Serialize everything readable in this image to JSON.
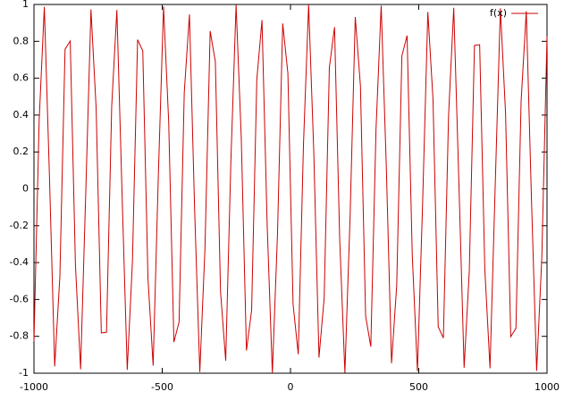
{
  "chart_data": {
    "type": "line",
    "x": [
      -1000,
      -979.8,
      -959.6,
      -939.4,
      -919.2,
      -899.0,
      -878.8,
      -858.6,
      -838.4,
      -818.2,
      -798.0,
      -777.8,
      -757.6,
      -737.4,
      -717.2,
      -697.0,
      -676.8,
      -656.6,
      -636.4,
      -616.2,
      -596.0,
      -575.8,
      -555.6,
      -535.4,
      -515.2,
      -494.9,
      -474.7,
      -454.5,
      -434.3,
      -414.1,
      -393.9,
      -373.7,
      -353.5,
      -333.3,
      -313.1,
      -292.9,
      -272.7,
      -252.5,
      -232.3,
      -212.1,
      -191.9,
      -171.7,
      -151.5,
      -131.3,
      -111.1,
      -90.9,
      -70.7,
      -50.5,
      -30.3,
      -10.1,
      10.1,
      30.3,
      50.5,
      70.7,
      90.9,
      111.1,
      131.3,
      151.5,
      171.7,
      191.9,
      212.1,
      232.3,
      252.5,
      272.7,
      292.9,
      313.1,
      333.3,
      353.5,
      373.7,
      393.9,
      414.1,
      434.3,
      454.5,
      474.7,
      494.9,
      515.2,
      535.4,
      555.6,
      575.8,
      596.0,
      616.2,
      636.4,
      656.6,
      676.8,
      697.0,
      717.2,
      737.4,
      757.6,
      777.8,
      798.0,
      818.2,
      838.4,
      858.6,
      878.8,
      899.0,
      919.2,
      939.4,
      959.6,
      979.8,
      1000
    ],
    "series": [
      {
        "name": "f(x)",
        "color": "#cc0000",
        "values": [
          -0.827,
          0.37,
          0.987,
          0.058,
          -0.963,
          -0.475,
          0.757,
          0.802,
          -0.409,
          -0.979,
          -0.015,
          0.973,
          0.437,
          -0.782,
          -0.778,
          0.447,
          0.97,
          -0.027,
          -0.982,
          -0.398,
          0.809,
          0.748,
          -0.485,
          -0.959,
          0.07,
          0.989,
          0.359,
          -0.831,
          -0.722,
          0.522,
          0.946,
          -0.112,
          -0.994,
          -0.319,
          0.856,
          0.69,
          -0.558,
          -0.932,
          0.154,
          0.998,
          0.278,
          -0.877,
          -0.658,
          0.592,
          0.915,
          -0.196,
          -1.0,
          -0.237,
          0.897,
          0.626,
          -0.626,
          -0.897,
          0.237,
          1.0,
          0.196,
          -0.915,
          -0.592,
          0.658,
          0.877,
          -0.278,
          -0.998,
          -0.154,
          0.932,
          0.558,
          -0.69,
          -0.856,
          0.319,
          0.994,
          0.112,
          -0.946,
          -0.522,
          0.722,
          0.831,
          -0.359,
          -0.989,
          -0.07,
          0.959,
          0.485,
          -0.748,
          -0.809,
          0.398,
          0.982,
          0.027,
          -0.97,
          -0.447,
          0.778,
          0.782,
          -0.437,
          -0.973,
          0.015,
          0.979,
          0.409,
          -0.802,
          -0.757,
          0.475,
          0.963,
          -0.058,
          -0.987,
          -0.37,
          0.827
        ]
      }
    ],
    "xlim": [
      -1000,
      1000
    ],
    "xticks": [
      -1000,
      -500,
      0,
      500,
      1000
    ],
    "ylim": [
      -1,
      1
    ],
    "yticks": [
      -1,
      -0.8,
      -0.6,
      -0.4,
      -0.2,
      0,
      0.2,
      0.4,
      0.6,
      0.8,
      1
    ],
    "legend": "top-right"
  }
}
